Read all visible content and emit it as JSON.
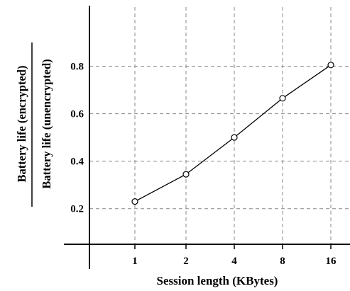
{
  "chart_data": {
    "type": "line",
    "title": "",
    "xlabel": "Session length (KBytes)",
    "ylabel": {
      "numerator": "Battery life (encrypted)",
      "denominator": "Battery life (unencrypted)"
    },
    "categories": [
      "1",
      "2",
      "4",
      "8",
      "16"
    ],
    "series": [
      {
        "values": [
          0.23,
          0.345,
          0.5,
          0.665,
          0.805
        ]
      }
    ],
    "y_ticks": [
      "0.2",
      "0.4",
      "0.6",
      "0.8"
    ],
    "ylim": [
      0.05,
      1.0
    ],
    "grid": true,
    "grid_style": "dashed",
    "marker": "open-circle",
    "colors": {
      "line": "#000000",
      "grid": "#888888",
      "axis": "#000000"
    }
  }
}
